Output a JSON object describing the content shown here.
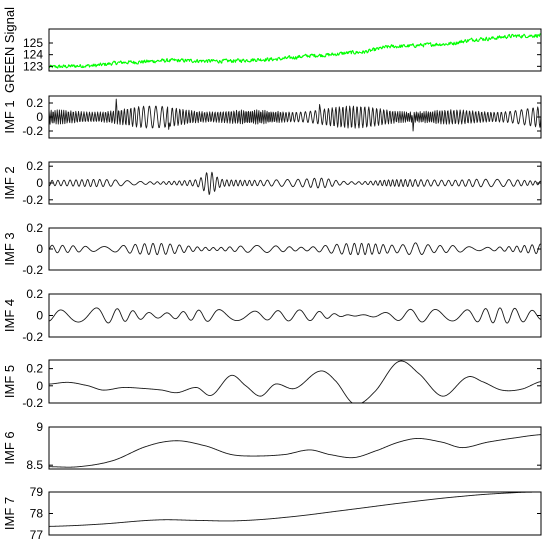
{
  "colors": {
    "signal": "#00ff00",
    "imf": "#1a1a1a",
    "axis": "#000000",
    "background": "#ffffff"
  },
  "chart_data": [
    {
      "type": "line",
      "ylabel": "GREEN Signal",
      "yticks": [
        123,
        124,
        125
      ],
      "ylim": [
        122.6,
        126.2
      ],
      "trend": [
        [
          0,
          122.95
        ],
        [
          0.08,
          123.05
        ],
        [
          0.16,
          123.35
        ],
        [
          0.25,
          123.5
        ],
        [
          0.35,
          123.45
        ],
        [
          0.45,
          123.6
        ],
        [
          0.55,
          123.95
        ],
        [
          0.63,
          124.2
        ],
        [
          0.7,
          124.7
        ],
        [
          0.8,
          124.9
        ],
        [
          0.88,
          125.35
        ],
        [
          0.95,
          125.6
        ],
        [
          1.0,
          125.65
        ]
      ],
      "noise_amplitude": 0.22,
      "color": "#00ff00"
    },
    {
      "type": "line",
      "ylabel": "IMF 1",
      "yticks": [
        -0.2,
        0,
        0.2
      ],
      "ylim": [
        -0.3,
        0.3
      ],
      "amplitude": 0.16,
      "cycles": 165,
      "spikes": [
        [
          0.137,
          0.3
        ],
        [
          0.243,
          -0.23
        ],
        [
          0.55,
          0.18
        ],
        [
          0.74,
          -0.2
        ]
      ]
    },
    {
      "type": "line",
      "ylabel": "IMF 2",
      "yticks": [
        -0.2,
        0,
        0.2
      ],
      "ylim": [
        -0.25,
        0.25
      ],
      "amplitude": 0.05,
      "cycles": 78,
      "bursts": [
        [
          0.326,
          0.015,
          0.17
        ],
        [
          0.56,
          0.03,
          0.09
        ],
        [
          0.68,
          0.04,
          0.06
        ],
        [
          0.86,
          0.03,
          0.06
        ]
      ]
    },
    {
      "type": "line",
      "ylabel": "IMF 3",
      "yticks": [
        -0.2,
        0,
        0.2
      ],
      "ylim": [
        -0.2,
        0.2
      ],
      "amplitude": 0.055,
      "cycles": 46,
      "bursts": [
        [
          0.33,
          0.06,
          0.03
        ],
        [
          0.518,
          0.03,
          0.04
        ],
        [
          0.745,
          0.025,
          0.12
        ],
        [
          0.875,
          0.04,
          0.03
        ]
      ]
    },
    {
      "type": "line",
      "ylabel": "IMF 4",
      "yticks": [
        -0.2,
        0,
        0.2
      ],
      "ylim": [
        -0.2,
        0.2
      ],
      "amplitude": 0.08,
      "cycles": 24,
      "bursts": [
        [
          0.5,
          0.2,
          0.06
        ],
        [
          0.62,
          0.06,
          0.03
        ]
      ]
    },
    {
      "type": "line",
      "ylabel": "IMF 5",
      "yticks": [
        -0.2,
        0,
        0.2
      ],
      "ylim": [
        -0.2,
        0.3
      ],
      "curve": [
        [
          0,
          0.02
        ],
        [
          0.04,
          0.04
        ],
        [
          0.08,
          0.0
        ],
        [
          0.11,
          -0.05
        ],
        [
          0.15,
          -0.02
        ],
        [
          0.19,
          -0.03
        ],
        [
          0.23,
          -0.05
        ],
        [
          0.26,
          -0.08
        ],
        [
          0.3,
          -0.02
        ],
        [
          0.33,
          -0.11
        ],
        [
          0.37,
          0.12
        ],
        [
          0.4,
          0.0
        ],
        [
          0.43,
          -0.12
        ],
        [
          0.46,
          0.02
        ],
        [
          0.5,
          -0.03
        ],
        [
          0.55,
          0.17
        ],
        [
          0.58,
          0.07
        ],
        [
          0.62,
          -0.21
        ],
        [
          0.66,
          -0.08
        ],
        [
          0.71,
          0.28
        ],
        [
          0.75,
          0.15
        ],
        [
          0.8,
          -0.12
        ],
        [
          0.85,
          0.1
        ],
        [
          0.88,
          0.05
        ],
        [
          0.92,
          -0.05
        ],
        [
          0.96,
          -0.04
        ],
        [
          1.0,
          0.05
        ]
      ]
    },
    {
      "type": "line",
      "ylabel": "IMF 6",
      "yticks": [
        8.5,
        9
      ],
      "ylim": [
        8.45,
        9.0
      ],
      "curve": [
        [
          0,
          8.48
        ],
        [
          0.06,
          8.48
        ],
        [
          0.13,
          8.56
        ],
        [
          0.2,
          8.75
        ],
        [
          0.26,
          8.82
        ],
        [
          0.32,
          8.75
        ],
        [
          0.37,
          8.64
        ],
        [
          0.42,
          8.62
        ],
        [
          0.48,
          8.64
        ],
        [
          0.53,
          8.7
        ],
        [
          0.57,
          8.64
        ],
        [
          0.62,
          8.6
        ],
        [
          0.67,
          8.7
        ],
        [
          0.71,
          8.8
        ],
        [
          0.75,
          8.85
        ],
        [
          0.8,
          8.8
        ],
        [
          0.84,
          8.73
        ],
        [
          0.89,
          8.8
        ],
        [
          0.95,
          8.86
        ],
        [
          1.0,
          8.9
        ]
      ]
    },
    {
      "type": "line",
      "ylabel": "IMF 7",
      "yticks": [
        77,
        78,
        79
      ],
      "ylim": [
        77.0,
        79.0
      ],
      "curve": [
        [
          0,
          77.4
        ],
        [
          0.1,
          77.5
        ],
        [
          0.22,
          77.7
        ],
        [
          0.3,
          77.68
        ],
        [
          0.38,
          77.66
        ],
        [
          0.48,
          77.82
        ],
        [
          0.6,
          78.15
        ],
        [
          0.72,
          78.5
        ],
        [
          0.84,
          78.8
        ],
        [
          0.94,
          78.96
        ],
        [
          1.0,
          79.0
        ]
      ]
    }
  ]
}
